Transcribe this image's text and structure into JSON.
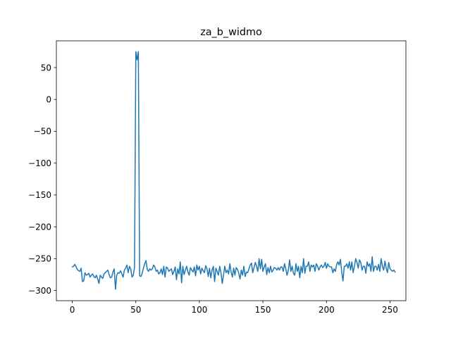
{
  "chart_data": {
    "type": "line",
    "title": "za_b_widmo",
    "xlabel": "",
    "ylabel": "",
    "xlim": [
      -12.5,
      262.5
    ],
    "ylim": [
      -316,
      92
    ],
    "xticks": [
      0,
      50,
      100,
      150,
      200,
      250
    ],
    "xtick_labels": [
      "0",
      "50",
      "100",
      "150",
      "200",
      "250"
    ],
    "yticks": [
      50,
      0,
      -50,
      -100,
      -150,
      -200,
      -250,
      -300
    ],
    "ytick_labels": [
      "50",
      "0",
      "−50",
      "−100",
      "−150",
      "−200",
      "−250",
      "−300"
    ],
    "grid": false,
    "series": [
      {
        "color": "#1f77b4",
        "x_start": 0,
        "x_step": 1,
        "values": [
          -263,
          -262,
          -259,
          -263,
          -267,
          -269,
          -270,
          -265,
          -286,
          -285,
          -272,
          -276,
          -275,
          -273,
          -279,
          -276,
          -274,
          -278,
          -280,
          -276,
          -282,
          -289,
          -276,
          -279,
          -281,
          -274,
          -272,
          -270,
          -268,
          -275,
          -280,
          -279,
          -271,
          -266,
          -298,
          -276,
          -272,
          -273,
          -269,
          -274,
          -279,
          -268,
          -265,
          -260,
          -272,
          -262,
          -266,
          -279,
          -276,
          -264,
          75,
          62,
          75,
          -277,
          -278,
          -273,
          -265,
          -258,
          -253,
          -267,
          -270,
          -266,
          -268,
          -266,
          -260,
          -263,
          -270,
          -268,
          -274,
          -272,
          -266,
          -275,
          -262,
          -279,
          -263,
          -265,
          -270,
          -268,
          -266,
          -275,
          -270,
          -263,
          -283,
          -266,
          -274,
          -255,
          -288,
          -262,
          -275,
          -268,
          -262,
          -271,
          -276,
          -264,
          -268,
          -271,
          -263,
          -277,
          -260,
          -268,
          -262,
          -274,
          -265,
          -269,
          -272,
          -261,
          -266,
          -278,
          -265,
          -280,
          -268,
          -262,
          -286,
          -265,
          -270,
          -276,
          -262,
          -272,
          -289,
          -276,
          -262,
          -272,
          -268,
          -274,
          -258,
          -271,
          -279,
          -265,
          -276,
          -264,
          -267,
          -273,
          -282,
          -268,
          -276,
          -262,
          -278,
          -271,
          -272,
          -266,
          -260,
          -257,
          -272,
          -264,
          -256,
          -262,
          -270,
          -250,
          -266,
          -251,
          -270,
          -263,
          -258,
          -275,
          -264,
          -272,
          -262,
          -271,
          -268,
          -264,
          -265,
          -268,
          -264,
          -268,
          -263,
          -263,
          -270,
          -258,
          -266,
          -276,
          -268,
          -252,
          -270,
          -262,
          -273,
          -276,
          -258,
          -270,
          -262,
          -280,
          -262,
          -272,
          -250,
          -273,
          -262,
          -262,
          -255,
          -270,
          -260,
          -263,
          -260,
          -270,
          -258,
          -262,
          -268,
          -263,
          -260,
          -264,
          -262,
          -256,
          -265,
          -258,
          -262,
          -263,
          -263,
          -272,
          -266,
          -270,
          -259,
          -255,
          -260,
          -251,
          -271,
          -285,
          -262,
          -262,
          -258,
          -265,
          -255,
          -268,
          -255,
          -272,
          -262,
          -250,
          -256,
          -265,
          -252,
          -256,
          -268,
          -262,
          -262,
          -273,
          -255,
          -262,
          -258,
          -270,
          -247,
          -270,
          -262,
          -262,
          -268,
          -259,
          -270,
          -250,
          -262,
          -268,
          -254,
          -265,
          -272,
          -256,
          -266,
          -268,
          -270,
          -268,
          -271
        ]
      }
    ]
  }
}
